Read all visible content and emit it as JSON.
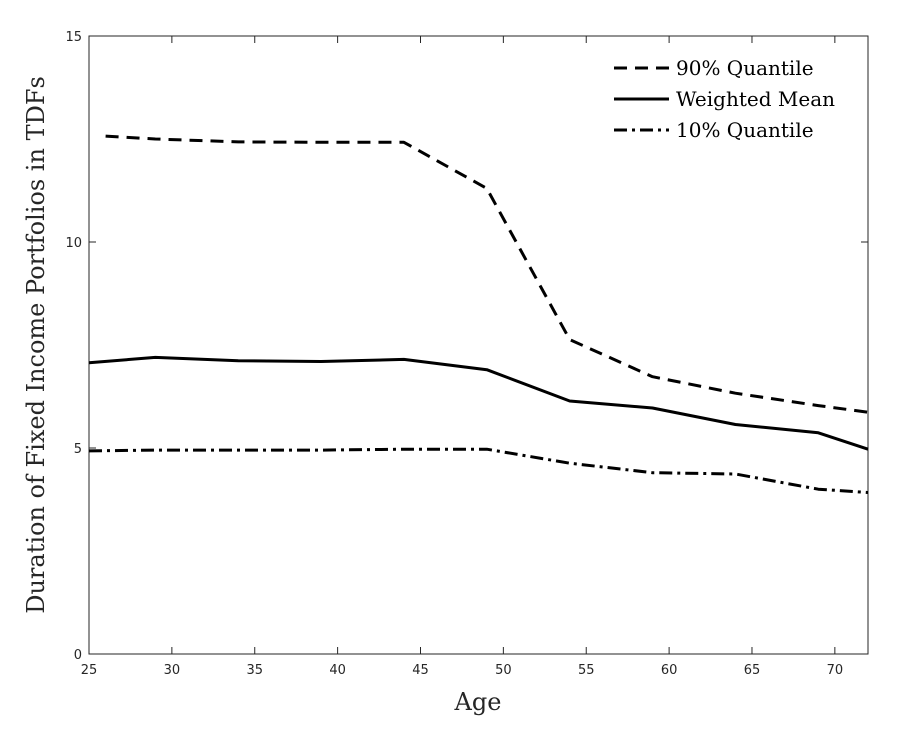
{
  "chart_data": {
    "type": "line",
    "xlabel": "Age",
    "ylabel": "Duration of Fixed Income Portfolios in TDFs",
    "xlim": [
      25,
      72
    ],
    "ylim": [
      0,
      15
    ],
    "xticks": [
      25,
      30,
      35,
      40,
      45,
      50,
      55,
      60,
      65,
      70
    ],
    "yticks": [
      0,
      5,
      10,
      15
    ],
    "grid": false,
    "legend_position": "top-right",
    "series": [
      {
        "name": "90% Quantile",
        "line_style": "dashed",
        "color": "#000000",
        "x": [
          26,
          29,
          34,
          39,
          44,
          49,
          54,
          59,
          64,
          69,
          72
        ],
        "y": [
          12.57,
          12.5,
          12.43,
          12.42,
          12.42,
          11.3,
          7.63,
          6.73,
          6.33,
          6.03,
          5.87
        ]
      },
      {
        "name": "Weighted Mean",
        "line_style": "solid",
        "color": "#000000",
        "x": [
          25,
          29,
          34,
          39,
          44,
          49,
          54,
          59,
          64,
          69,
          72
        ],
        "y": [
          7.07,
          7.2,
          7.12,
          7.1,
          7.15,
          6.9,
          6.14,
          5.97,
          5.57,
          5.37,
          4.97
        ]
      },
      {
        "name": "10% Quantile",
        "line_style": "dashdot",
        "color": "#000000",
        "x": [
          25,
          29,
          34,
          39,
          44,
          49,
          54,
          59,
          64,
          69,
          72
        ],
        "y": [
          4.93,
          4.95,
          4.95,
          4.95,
          4.97,
          4.97,
          4.63,
          4.4,
          4.37,
          4.0,
          3.92
        ]
      }
    ]
  }
}
